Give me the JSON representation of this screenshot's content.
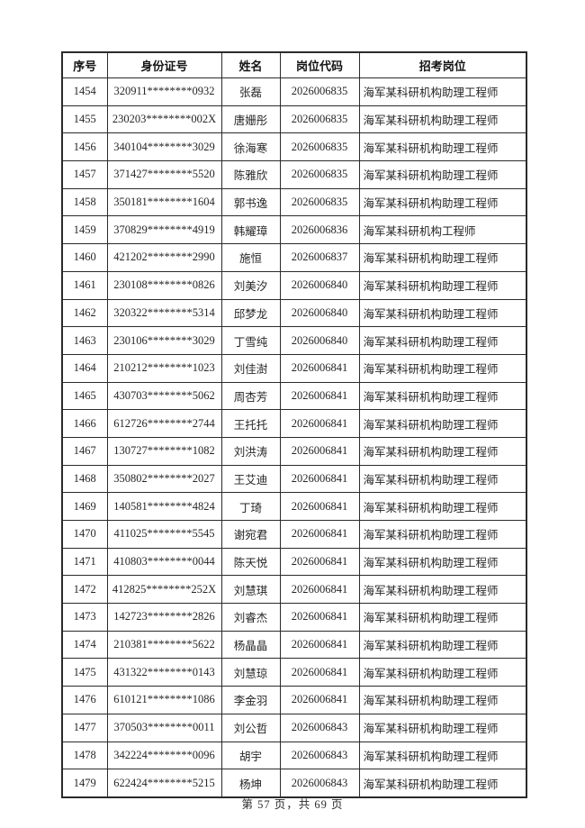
{
  "page": {
    "footer": "第 57 页，共 69 页"
  },
  "table": {
    "headers": [
      "序号",
      "身份证号",
      "姓名",
      "岗位代码",
      "招考岗位"
    ],
    "rows": [
      [
        "1454",
        "320911********0932",
        "张磊",
        "2026006835",
        "海军某科研机构助理工程师"
      ],
      [
        "1455",
        "230203********002X",
        "唐姗彤",
        "2026006835",
        "海军某科研机构助理工程师"
      ],
      [
        "1456",
        "340104********3029",
        "徐海寒",
        "2026006835",
        "海军某科研机构助理工程师"
      ],
      [
        "1457",
        "371427********5520",
        "陈雅欣",
        "2026006835",
        "海军某科研机构助理工程师"
      ],
      [
        "1458",
        "350181********1604",
        "郭书逸",
        "2026006835",
        "海军某科研机构助理工程师"
      ],
      [
        "1459",
        "370829********4919",
        "韩耀璋",
        "2026006836",
        "海军某科研机构工程师"
      ],
      [
        "1460",
        "421202********2990",
        "施恒",
        "2026006837",
        "海军某科研机构助理工程师"
      ],
      [
        "1461",
        "230108********0826",
        "刘美汐",
        "2026006840",
        "海军某科研机构助理工程师"
      ],
      [
        "1462",
        "320322********5314",
        "邱梦龙",
        "2026006840",
        "海军某科研机构助理工程师"
      ],
      [
        "1463",
        "230106********3029",
        "丁雪纯",
        "2026006840",
        "海军某科研机构助理工程师"
      ],
      [
        "1464",
        "210212********1023",
        "刘佳澍",
        "2026006841",
        "海军某科研机构助理工程师"
      ],
      [
        "1465",
        "430703********5062",
        "周杏芳",
        "2026006841",
        "海军某科研机构助理工程师"
      ],
      [
        "1466",
        "612726********2744",
        "王托托",
        "2026006841",
        "海军某科研机构助理工程师"
      ],
      [
        "1467",
        "130727********1082",
        "刘洪涛",
        "2026006841",
        "海军某科研机构助理工程师"
      ],
      [
        "1468",
        "350802********2027",
        "王艾迪",
        "2026006841",
        "海军某科研机构助理工程师"
      ],
      [
        "1469",
        "140581********4824",
        "丁琦",
        "2026006841",
        "海军某科研机构助理工程师"
      ],
      [
        "1470",
        "411025********5545",
        "谢宛君",
        "2026006841",
        "海军某科研机构助理工程师"
      ],
      [
        "1471",
        "410803********0044",
        "陈天悦",
        "2026006841",
        "海军某科研机构助理工程师"
      ],
      [
        "1472",
        "412825********252X",
        "刘慧琪",
        "2026006841",
        "海军某科研机构助理工程师"
      ],
      [
        "1473",
        "142723********2826",
        "刘睿杰",
        "2026006841",
        "海军某科研机构助理工程师"
      ],
      [
        "1474",
        "210381********5622",
        "杨晶晶",
        "2026006841",
        "海军某科研机构助理工程师"
      ],
      [
        "1475",
        "431322********0143",
        "刘慧琼",
        "2026006841",
        "海军某科研机构助理工程师"
      ],
      [
        "1476",
        "610121********1086",
        "李金羽",
        "2026006841",
        "海军某科研机构助理工程师"
      ],
      [
        "1477",
        "370503********0011",
        "刘公哲",
        "2026006843",
        "海军某科研机构助理工程师"
      ],
      [
        "1478",
        "342224********0096",
        "胡宇",
        "2026006843",
        "海军某科研机构助理工程师"
      ],
      [
        "1479",
        "622424********5215",
        "杨坤",
        "2026006843",
        "海军某科研机构助理工程师"
      ]
    ]
  }
}
